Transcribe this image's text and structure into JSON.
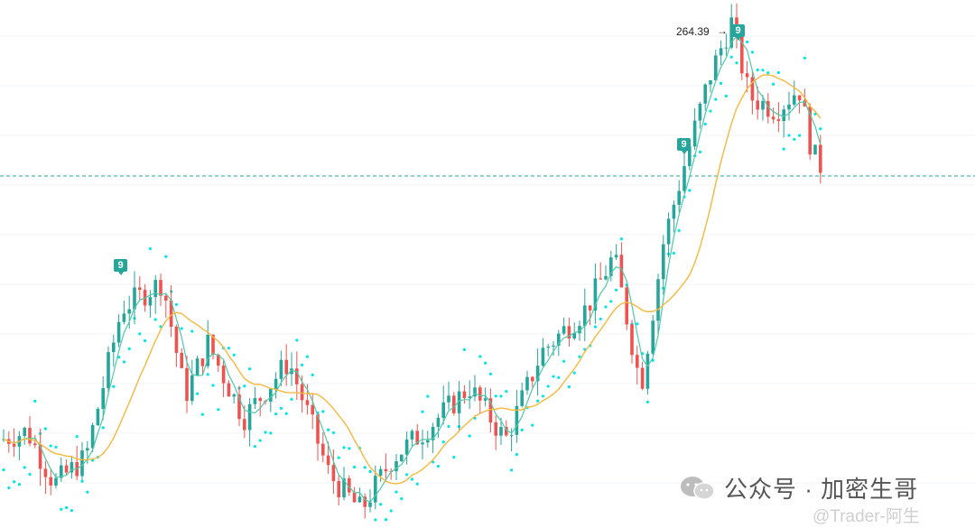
{
  "chart_data": {
    "type": "candlestick",
    "ylim": [
      150,
      270
    ],
    "horizontal_line": 230,
    "peak_label": "264.39",
    "signal_badges": [
      "9",
      "9",
      "9"
    ],
    "series": [
      {
        "name": "",
        "color": "#4ec9a8"
      },
      {
        "name": "",
        "color": "#f5b83d"
      },
      {
        "name": "",
        "color": "#00e5e5"
      }
    ],
    "up_color": "#26a69a",
    "down_color": "#ef5350"
  },
  "watermark": {
    "text": "公众号 · 加密生哥",
    "sub": "@Trader-阿生",
    "icon": "wechat-icon"
  }
}
